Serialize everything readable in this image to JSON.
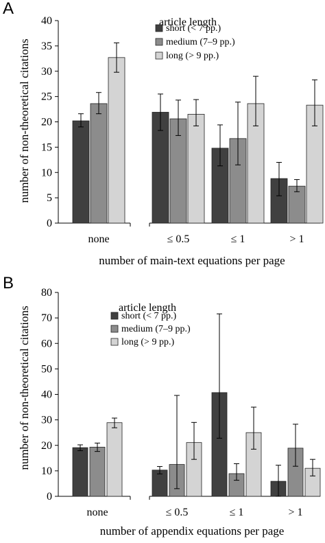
{
  "chart_data": [
    {
      "panel": "A",
      "type": "bar",
      "categories": [
        "none",
        "≤ 0.5",
        "≤ 1",
        "> 1"
      ],
      "xlabel": "number of main-text equations per page",
      "ylabel": "number of non-theoretical citations",
      "ylim": [
        0,
        40
      ],
      "yticks": [
        0,
        5,
        10,
        15,
        20,
        25,
        30,
        35,
        40
      ],
      "legend_title": "article length",
      "legend_position": "top-center",
      "axis_break": "between none and ≤ 0.5",
      "series": [
        {
          "name": "short (< 7 pp.)",
          "color": "#404040",
          "values": [
            20.2,
            21.9,
            14.8,
            8.8
          ],
          "err_low": [
            19.0,
            18.3,
            11.3,
            5.4
          ],
          "err_high": [
            21.6,
            25.5,
            19.4,
            12.0
          ]
        },
        {
          "name": "medium (7–9 pp.)",
          "color": "#8c8c8c",
          "values": [
            23.6,
            20.6,
            16.7,
            7.3
          ],
          "err_low": [
            21.6,
            17.3,
            11.5,
            6.2
          ],
          "err_high": [
            25.8,
            24.3,
            23.9,
            8.6
          ]
        },
        {
          "name": "long (> 9 pp.)",
          "color": "#d4d4d4",
          "values": [
            32.7,
            21.5,
            23.6,
            23.3
          ],
          "err_low": [
            29.8,
            19.2,
            19.2,
            19.2
          ],
          "err_high": [
            35.6,
            24.4,
            29.0,
            28.3
          ]
        }
      ]
    },
    {
      "panel": "B",
      "type": "bar",
      "categories": [
        "none",
        "≤ 0.5",
        "≤ 1",
        "> 1"
      ],
      "xlabel": "number of appendix equations per page",
      "ylabel": "number of non-theoretical citations",
      "ylim": [
        0,
        80
      ],
      "yticks": [
        0,
        10,
        20,
        30,
        40,
        50,
        60,
        70,
        80
      ],
      "legend_title": "article length",
      "legend_position": "top-left",
      "axis_break": "between none and ≤ 0.5",
      "series": [
        {
          "name": "short (< 7 pp.)",
          "color": "#404040",
          "values": [
            19.1,
            10.3,
            40.7,
            5.9
          ],
          "err_low": [
            17.9,
            8.8,
            22.8,
            0.0
          ],
          "err_high": [
            20.2,
            11.7,
            71.6,
            12.2
          ]
        },
        {
          "name": "medium (7–9 pp.)",
          "color": "#8c8c8c",
          "values": [
            19.3,
            12.5,
            8.9,
            18.9
          ],
          "err_low": [
            17.6,
            3.0,
            6.3,
            11.8
          ],
          "err_high": [
            20.9,
            39.6,
            12.8,
            28.3
          ]
        },
        {
          "name": "long (> 9 pp.)",
          "color": "#d4d4d4",
          "values": [
            28.9,
            21.1,
            25.0,
            11.0
          ],
          "err_low": [
            26.9,
            14.5,
            18.5,
            8.0
          ],
          "err_high": [
            30.7,
            29.0,
            35.0,
            14.5
          ]
        }
      ]
    }
  ]
}
